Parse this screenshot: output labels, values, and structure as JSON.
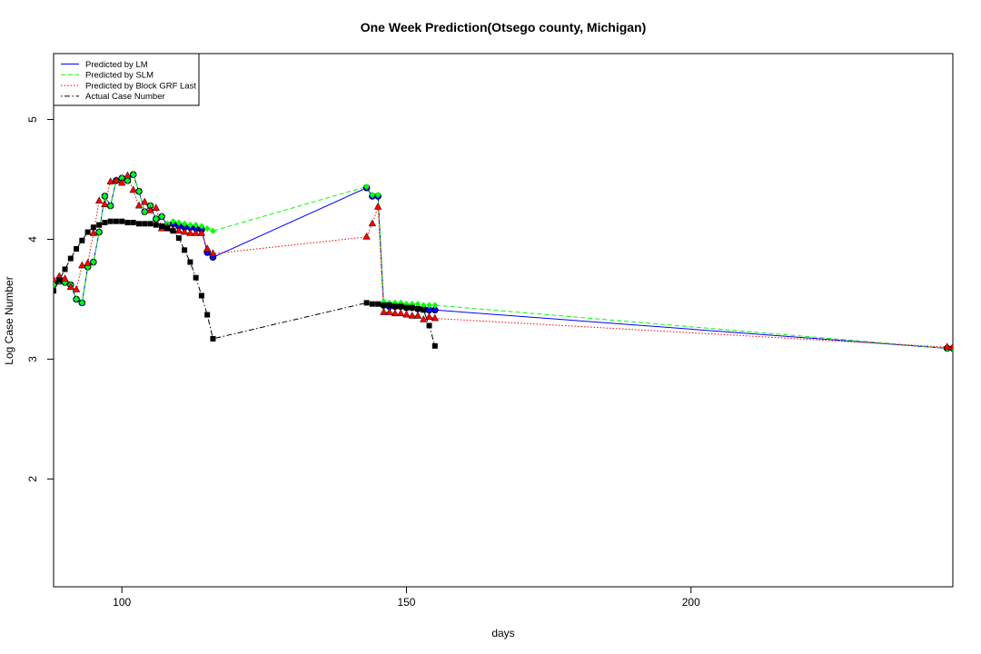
{
  "chart_data": {
    "type": "line",
    "title": "One Week Prediction(Otsego county, Michigan)",
    "xlabel": "days",
    "ylabel": "Log Case Number",
    "xlim": [
      88,
      246
    ],
    "ylim": [
      1.1,
      5.55
    ],
    "x_ticks": [
      100,
      150,
      200
    ],
    "y_ticks": [
      2,
      3,
      4,
      5
    ],
    "grid": false,
    "legend_position": "top-left",
    "series": [
      {
        "name": "Predicted by LM",
        "color": "#0000ff",
        "line_style": "solid",
        "marker": "circle",
        "x": [
          88,
          89,
          90,
          91,
          92,
          93,
          94,
          95,
          96,
          97,
          98,
          99,
          100,
          101,
          102,
          103,
          104,
          105,
          106,
          107,
          108,
          109,
          110,
          111,
          112,
          113,
          114,
          115,
          116,
          143,
          144,
          145,
          146,
          147,
          148,
          149,
          150,
          151,
          152,
          153,
          154,
          155,
          245,
          246
        ],
        "y": [
          3.62,
          3.65,
          3.64,
          3.62,
          3.5,
          3.47,
          3.77,
          3.81,
          4.06,
          4.36,
          4.28,
          4.49,
          4.51,
          4.49,
          4.54,
          4.4,
          4.23,
          4.28,
          4.17,
          4.19,
          4.12,
          4.13,
          4.11,
          4.1,
          4.1,
          4.09,
          4.08,
          3.89,
          3.85,
          4.43,
          4.36,
          4.36,
          3.45,
          3.44,
          3.44,
          3.44,
          3.43,
          3.43,
          3.42,
          3.42,
          3.41,
          3.41,
          3.09,
          3.09
        ]
      },
      {
        "name": "Predicted by SLM",
        "color": "#00ff00",
        "line_style": "dashed",
        "marker": "diamond",
        "x": [
          88,
          89,
          90,
          91,
          92,
          93,
          94,
          95,
          96,
          97,
          98,
          99,
          100,
          101,
          102,
          103,
          104,
          105,
          106,
          107,
          108,
          109,
          110,
          111,
          112,
          113,
          114,
          115,
          116,
          143,
          144,
          145,
          146,
          147,
          148,
          149,
          150,
          151,
          152,
          153,
          154,
          155,
          245,
          246
        ],
        "y": [
          3.62,
          3.65,
          3.64,
          3.62,
          3.5,
          3.47,
          3.77,
          3.81,
          4.06,
          4.36,
          4.28,
          4.49,
          4.51,
          4.49,
          4.54,
          4.4,
          4.23,
          4.28,
          4.17,
          4.19,
          4.13,
          4.15,
          4.14,
          4.13,
          4.12,
          4.12,
          4.11,
          4.09,
          4.07,
          4.44,
          4.37,
          4.37,
          3.48,
          3.47,
          3.47,
          3.47,
          3.46,
          3.46,
          3.46,
          3.45,
          3.45,
          3.45,
          3.09,
          3.09
        ]
      },
      {
        "name": "Predicted by Block GRF Last",
        "color": "#ff0000",
        "line_style": "dotted",
        "marker": "triangle",
        "x": [
          88,
          89,
          90,
          91,
          92,
          93,
          94,
          95,
          96,
          97,
          98,
          99,
          100,
          101,
          102,
          103,
          104,
          105,
          106,
          107,
          108,
          109,
          110,
          111,
          112,
          113,
          114,
          115,
          116,
          143,
          144,
          145,
          146,
          147,
          148,
          149,
          150,
          151,
          152,
          153,
          154,
          155,
          245,
          246
        ],
        "y": [
          3.66,
          3.69,
          3.67,
          3.6,
          3.58,
          3.78,
          3.8,
          4.05,
          4.32,
          4.29,
          4.48,
          4.49,
          4.47,
          4.53,
          4.41,
          4.28,
          4.31,
          4.24,
          4.26,
          4.09,
          4.1,
          4.08,
          4.07,
          4.06,
          4.05,
          4.05,
          4.05,
          3.92,
          3.88,
          4.02,
          4.13,
          4.27,
          3.39,
          3.39,
          3.38,
          3.38,
          3.37,
          3.36,
          3.36,
          3.33,
          3.35,
          3.34,
          3.1,
          3.1
        ]
      },
      {
        "name": "Actual Case Number",
        "color": "#000000",
        "line_style": "dotdash",
        "marker": "square",
        "x": [
          88,
          89,
          90,
          91,
          92,
          93,
          94,
          95,
          96,
          97,
          98,
          99,
          100,
          101,
          102,
          103,
          104,
          105,
          106,
          107,
          108,
          109,
          110,
          111,
          112,
          113,
          114,
          115,
          116,
          143,
          144,
          145,
          146,
          147,
          148,
          149,
          150,
          151,
          152,
          153,
          154,
          155
        ],
        "y": [
          3.57,
          3.66,
          3.75,
          3.84,
          3.92,
          3.99,
          4.06,
          4.1,
          4.12,
          4.14,
          4.15,
          4.15,
          4.15,
          4.14,
          4.14,
          4.13,
          4.13,
          4.13,
          4.12,
          4.11,
          4.09,
          4.07,
          4.01,
          3.91,
          3.81,
          3.68,
          3.53,
          3.37,
          3.17,
          3.47,
          3.46,
          3.46,
          3.45,
          3.45,
          3.44,
          3.44,
          3.43,
          3.43,
          3.42,
          3.41,
          3.28,
          3.11
        ]
      }
    ]
  }
}
